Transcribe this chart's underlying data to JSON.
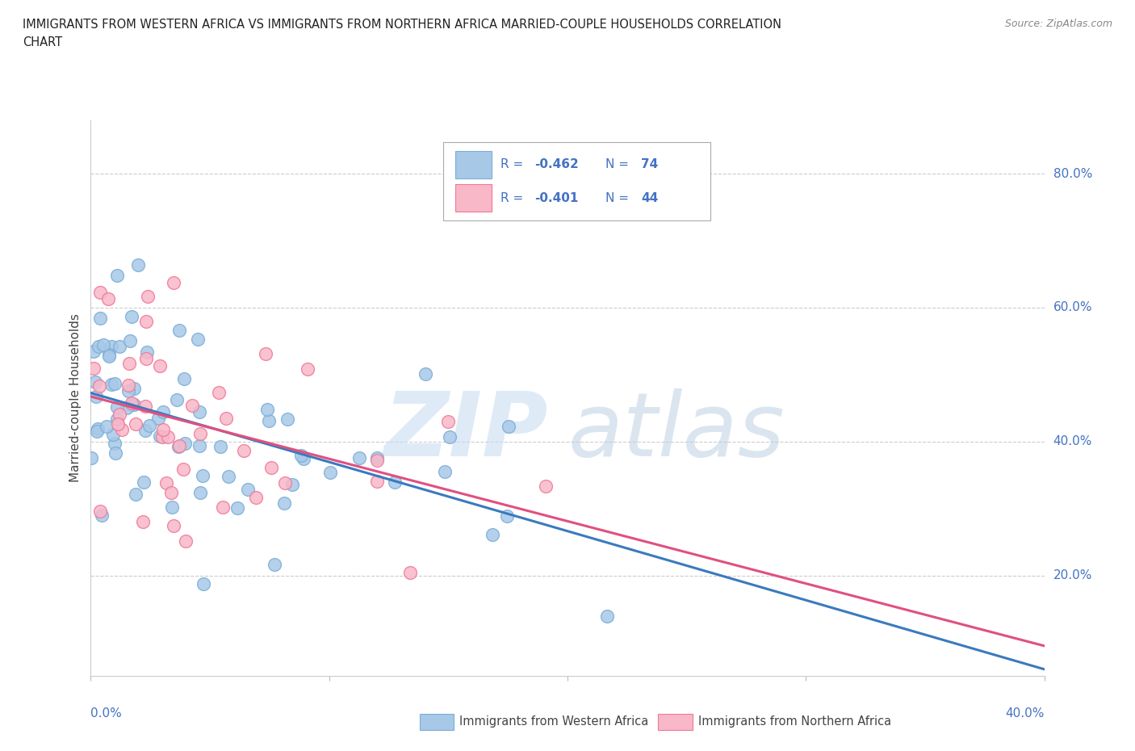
{
  "title_line1": "IMMIGRANTS FROM WESTERN AFRICA VS IMMIGRANTS FROM NORTHERN AFRICA MARRIED-COUPLE HOUSEHOLDS CORRELATION",
  "title_line2": "CHART",
  "source": "Source: ZipAtlas.com",
  "ylabel": "Married-couple Households",
  "yticks": [
    0.2,
    0.4,
    0.6,
    0.8
  ],
  "ytick_labels": [
    "20.0%",
    "40.0%",
    "60.0%",
    "80.0%"
  ],
  "xlim": [
    0.0,
    0.4
  ],
  "ylim": [
    0.05,
    0.88
  ],
  "western_color": "#a8c8e8",
  "western_edge_color": "#7aaed6",
  "northern_color": "#f8b8c8",
  "northern_edge_color": "#f07898",
  "western_line_color": "#3a7abf",
  "northern_line_color": "#e05080",
  "legend_color": "#4472c4",
  "watermark_zip_color": "#c8ddf0",
  "watermark_atlas_color": "#b8cce0",
  "background_color": "#ffffff",
  "N_western": 74,
  "N_northern": 44,
  "R_western": -0.462,
  "R_northern": -0.401,
  "western_seed": 42,
  "northern_seed": 7
}
